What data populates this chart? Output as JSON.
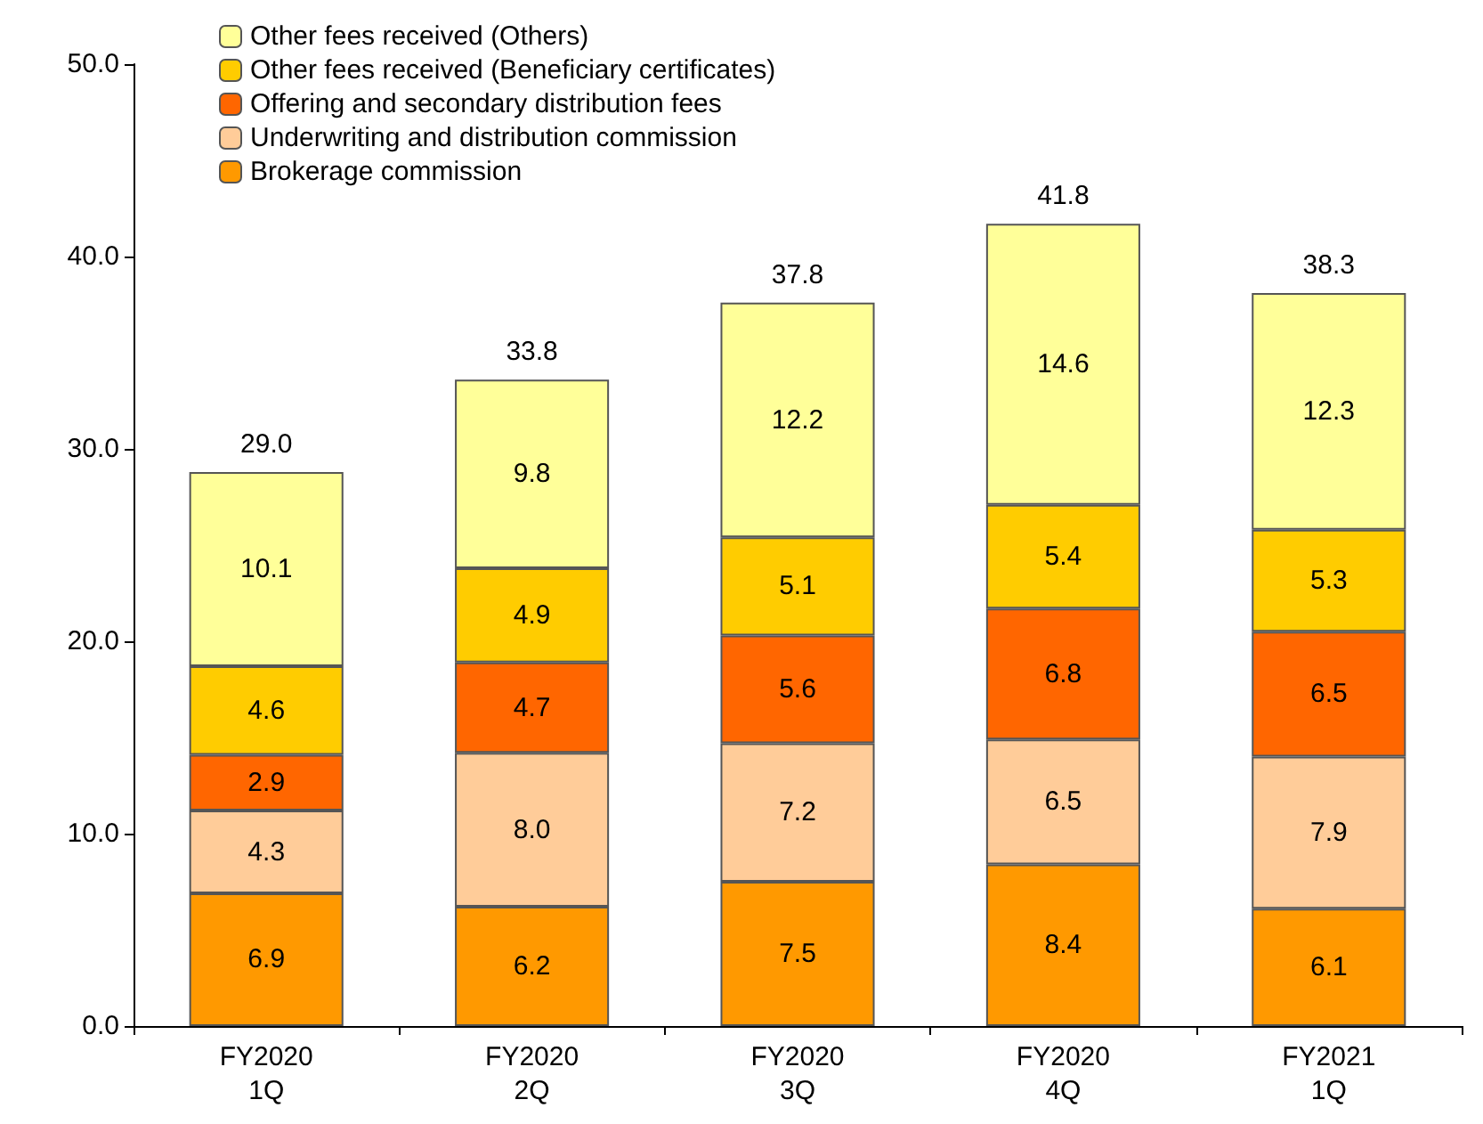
{
  "chart_data": {
    "type": "bar",
    "stacked": true,
    "categories": [
      "FY2020\n1Q",
      "FY2020\n2Q",
      "FY2020\n3Q",
      "FY2020\n4Q",
      "FY2021\n1Q"
    ],
    "ylim": [
      0,
      50
    ],
    "yticks": [
      {
        "value": 0,
        "label": "0.0"
      },
      {
        "value": 10,
        "label": "10.0"
      },
      {
        "value": 20,
        "label": "20.0"
      },
      {
        "value": 30,
        "label": "30.0"
      },
      {
        "value": 40,
        "label": "40.0"
      },
      {
        "value": 50,
        "label": "50.0"
      }
    ],
    "grid": false,
    "legend": "top left",
    "series": [
      {
        "name": "Brokerage commission",
        "color": "#ff9900",
        "values": [
          6.9,
          6.2,
          7.5,
          8.4,
          6.1
        ],
        "value_labels": [
          "6.9",
          "6.2",
          "7.5",
          "8.4",
          "6.1"
        ]
      },
      {
        "name": "Underwriting and distribution commission",
        "color": "#ffcc99",
        "values": [
          4.3,
          8.0,
          7.2,
          6.5,
          7.9
        ],
        "value_labels": [
          "4.3",
          "8.0",
          "7.2",
          "6.5",
          "7.9"
        ]
      },
      {
        "name": "Offering and secondary distribution fees",
        "color": "#ff6600",
        "values": [
          2.9,
          4.7,
          5.6,
          6.8,
          6.5
        ],
        "value_labels": [
          "2.9",
          "4.7",
          "5.6",
          "6.8",
          "6.5"
        ]
      },
      {
        "name": "Other fees received (Beneficiary certificates)",
        "color": "#ffcc00",
        "values": [
          4.6,
          4.9,
          5.1,
          5.4,
          5.3
        ],
        "value_labels": [
          "4.6",
          "4.9",
          "5.1",
          "5.4",
          "5.3"
        ]
      },
      {
        "name": "Other fees received (Others)",
        "color": "#ffff99",
        "values": [
          10.1,
          9.8,
          12.2,
          14.6,
          12.3
        ],
        "value_labels": [
          "10.1",
          "9.8",
          "12.2",
          "14.6",
          "12.3"
        ]
      }
    ],
    "totals": [
      "29.0",
      "33.8",
      "37.8",
      "41.8",
      "38.3"
    ]
  }
}
